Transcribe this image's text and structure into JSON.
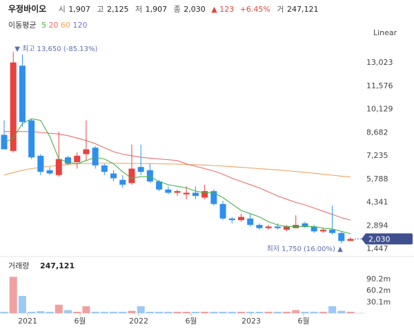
{
  "header": {
    "name": "우정바이오",
    "open_label": "시",
    "open": "1,907",
    "high_label": "고",
    "high": "2,125",
    "low_label": "저",
    "low": "1,907",
    "close_label": "종",
    "close": "2,030",
    "change": "▲ 123",
    "change_pct": "+6.45%",
    "volume_label": "거",
    "volume": "247,121"
  },
  "ma_legend": {
    "label": "이동평균",
    "items": [
      {
        "period": "5",
        "color": "#47b14b"
      },
      {
        "period": "20",
        "color": "#ec6c6c"
      },
      {
        "period": "60",
        "color": "#f2a35e"
      },
      {
        "period": "120",
        "color": "#7a6fd0"
      }
    ]
  },
  "scale_label": "Linear",
  "chart_data": {
    "type": "candlestick",
    "up_color": "#e9413d",
    "down_color": "#2d8ff0",
    "y_ticks": [
      "13,023",
      "11,576",
      "10,129",
      "8,682",
      "7,235",
      "5,788",
      "4,341",
      "2,894",
      "1,447"
    ],
    "y_tick_values": [
      13023,
      11576,
      10129,
      8682,
      7235,
      5788,
      4341,
      2894,
      1447
    ],
    "x_ticks": [
      "2021",
      "6월",
      "2022",
      "6월",
      "2023",
      "6월"
    ],
    "max_annotation": "▼ 최고 13,650 (-85.13%)",
    "min_annotation": "최저 1,750 (16.00%) ▲",
    "last_price": "2,030",
    "candles": [
      {
        "o": 8500,
        "h": 9400,
        "l": 7600,
        "c": 7600
      },
      {
        "o": 7500,
        "h": 13650,
        "l": 7400,
        "c": 13000
      },
      {
        "o": 12800,
        "h": 13500,
        "l": 9000,
        "c": 9300
      },
      {
        "o": 9400,
        "h": 9500,
        "l": 7000,
        "c": 7100
      },
      {
        "o": 7200,
        "h": 7300,
        "l": 6000,
        "c": 6200
      },
      {
        "o": 6300,
        "h": 6500,
        "l": 6000,
        "c": 6100
      },
      {
        "o": 6000,
        "h": 8700,
        "l": 5900,
        "c": 7000
      },
      {
        "o": 7100,
        "h": 7200,
        "l": 6600,
        "c": 6700
      },
      {
        "o": 6800,
        "h": 7400,
        "l": 6400,
        "c": 7200
      },
      {
        "o": 7300,
        "h": 9400,
        "l": 6900,
        "c": 7600
      },
      {
        "o": 7700,
        "h": 7800,
        "l": 6400,
        "c": 6600
      },
      {
        "o": 6600,
        "h": 6700,
        "l": 6000,
        "c": 6200
      },
      {
        "o": 6100,
        "h": 6300,
        "l": 5600,
        "c": 5800
      },
      {
        "o": 5700,
        "h": 6000,
        "l": 5200,
        "c": 5400
      },
      {
        "o": 5500,
        "h": 7900,
        "l": 5400,
        "c": 6400
      },
      {
        "o": 6500,
        "h": 7900,
        "l": 6000,
        "c": 6200
      },
      {
        "o": 6300,
        "h": 6700,
        "l": 5500,
        "c": 5600
      },
      {
        "o": 5600,
        "h": 5700,
        "l": 5000,
        "c": 5100
      },
      {
        "o": 5100,
        "h": 5300,
        "l": 4800,
        "c": 4900
      },
      {
        "o": 4900,
        "h": 5100,
        "l": 4700,
        "c": 5000
      },
      {
        "o": 4800,
        "h": 5300,
        "l": 4500,
        "c": 4900
      },
      {
        "o": 4900,
        "h": 5300,
        "l": 4500,
        "c": 4700
      },
      {
        "o": 4600,
        "h": 5400,
        "l": 4500,
        "c": 5000
      },
      {
        "o": 5000,
        "h": 5100,
        "l": 4100,
        "c": 4200
      },
      {
        "o": 4200,
        "h": 4400,
        "l": 3200,
        "c": 3300
      },
      {
        "o": 3300,
        "h": 3400,
        "l": 3000,
        "c": 3200
      },
      {
        "o": 3200,
        "h": 3600,
        "l": 3100,
        "c": 3400
      },
      {
        "o": 3300,
        "h": 3600,
        "l": 2800,
        "c": 2900
      },
      {
        "o": 2900,
        "h": 3000,
        "l": 2600,
        "c": 2700
      },
      {
        "o": 2700,
        "h": 2900,
        "l": 2600,
        "c": 2800
      },
      {
        "o": 2800,
        "h": 3000,
        "l": 2600,
        "c": 2700
      },
      {
        "o": 2600,
        "h": 2900,
        "l": 2500,
        "c": 2800
      },
      {
        "o": 2700,
        "h": 3500,
        "l": 2700,
        "c": 2900
      },
      {
        "o": 3000,
        "h": 3100,
        "l": 2700,
        "c": 2800
      },
      {
        "o": 2800,
        "h": 2900,
        "l": 2400,
        "c": 2500
      },
      {
        "o": 2500,
        "h": 2700,
        "l": 2400,
        "c": 2600
      },
      {
        "o": 2600,
        "h": 4100,
        "l": 2300,
        "c": 2400
      },
      {
        "o": 2400,
        "h": 2500,
        "l": 1750,
        "c": 1900
      },
      {
        "o": 1907,
        "h": 2125,
        "l": 1907,
        "c": 2030
      }
    ],
    "ma5": [
      8000,
      8300,
      9200,
      9500,
      9400,
      8400,
      7000,
      6800,
      6700,
      6900,
      7100,
      7000,
      6700,
      6200,
      5800,
      5900,
      5900,
      5600,
      5400,
      5300,
      5200,
      5000,
      4900,
      4900,
      4600,
      4200,
      3800,
      3600,
      3400,
      3100,
      2900,
      2800,
      2800,
      2800,
      2800,
      2700,
      2650,
      2500,
      2350
    ],
    "ma20": [
      8700,
      8700,
      8700,
      8700,
      8650,
      8600,
      8550,
      8450,
      8300,
      8150,
      7950,
      7700,
      7450,
      7300,
      7200,
      7100,
      7050,
      7000,
      6950,
      6900,
      6700,
      6550,
      6400,
      6250,
      6050,
      5800,
      5600,
      5400,
      5200,
      4950,
      4700,
      4500,
      4300,
      4150,
      3950,
      3750,
      3550,
      3350,
      3200
    ],
    "ma60": [
      6000,
      6150,
      6300,
      6400,
      6480,
      6550,
      6600,
      6650,
      6700,
      6720,
      6730,
      6740,
      6740,
      6730,
      6720,
      6720,
      6710,
      6700,
      6690,
      6680,
      6660,
      6640,
      6620,
      6590,
      6560,
      6520,
      6480,
      6440,
      6400,
      6360,
      6320,
      6270,
      6220,
      6170,
      6110,
      6050,
      5990,
      5930,
      5880
    ],
    "volume_label": "거래량",
    "volume_value": "247,121",
    "volume_ticks": [
      "90.2m",
      "60.2m",
      "30.1m"
    ],
    "volume_tick_values": [
      90.2,
      60.2,
      30.1
    ],
    "volumes": [
      2,
      95,
      45,
      3,
      5,
      2,
      22,
      8,
      3,
      18,
      3,
      0,
      0,
      0,
      6,
      18,
      3,
      0,
      0,
      0,
      0,
      0,
      0,
      0,
      2,
      0,
      0,
      0,
      0,
      0,
      0,
      0,
      8,
      1,
      0,
      2,
      18,
      6,
      0
    ]
  }
}
